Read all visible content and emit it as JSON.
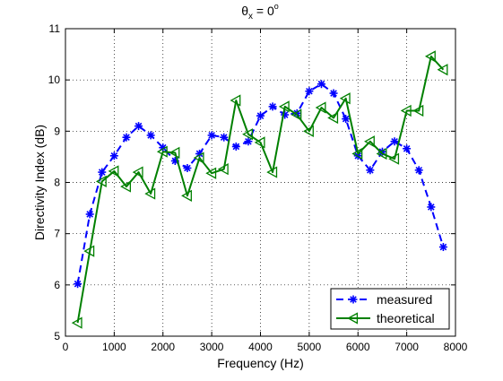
{
  "chart_data": {
    "type": "line",
    "title": "θ",
    "title_subscript": "x",
    "title_suffix": " = 0",
    "title_superscript": "o",
    "xlabel": "Frequency (Hz)",
    "ylabel": "Directivity Index (dB)",
    "xlim": [
      0,
      8000
    ],
    "ylim": [
      5,
      11
    ],
    "x_ticks": [
      0,
      1000,
      2000,
      3000,
      4000,
      5000,
      6000,
      7000,
      8000
    ],
    "y_ticks": [
      5,
      6,
      7,
      8,
      9,
      10,
      11
    ],
    "grid": true,
    "legend_position": "bottom-right",
    "series": [
      {
        "name": "measured",
        "color": "#0000ff",
        "line_style": "dashed",
        "marker": "asterisk",
        "x": [
          250,
          500,
          750,
          1000,
          1250,
          1500,
          1750,
          2000,
          2250,
          2500,
          2750,
          3000,
          3250,
          3500,
          3750,
          4000,
          4250,
          4500,
          4750,
          5000,
          5250,
          5500,
          5750,
          6000,
          6250,
          6500,
          6750,
          7000,
          7250,
          7500,
          7750
        ],
        "values": [
          6.02,
          7.38,
          8.2,
          8.52,
          8.88,
          9.1,
          8.92,
          8.68,
          8.42,
          8.28,
          8.56,
          8.92,
          8.88,
          8.7,
          8.8,
          9.3,
          9.48,
          9.32,
          9.35,
          9.78,
          9.92,
          9.74,
          9.24,
          8.52,
          8.24,
          8.6,
          8.8,
          8.66,
          8.24,
          7.52,
          6.74
        ]
      },
      {
        "name": "theoretical",
        "color": "#008000",
        "line_style": "solid",
        "marker": "left-triangle",
        "x": [
          250,
          500,
          750,
          1000,
          1250,
          1500,
          1750,
          2000,
          2250,
          2500,
          2750,
          3000,
          3250,
          3500,
          3750,
          4000,
          4250,
          4500,
          4750,
          5000,
          5250,
          5500,
          5750,
          6000,
          6250,
          6500,
          6750,
          7000,
          7250,
          7500,
          7750
        ],
        "values": [
          5.26,
          6.66,
          8.02,
          8.22,
          7.92,
          8.2,
          7.78,
          8.6,
          8.58,
          7.74,
          8.48,
          8.18,
          8.26,
          9.6,
          8.94,
          8.78,
          8.2,
          9.48,
          9.32,
          9.0,
          9.46,
          9.26,
          9.64,
          8.56,
          8.8,
          8.56,
          8.46,
          9.4,
          9.4,
          10.46,
          10.2
        ]
      }
    ]
  }
}
